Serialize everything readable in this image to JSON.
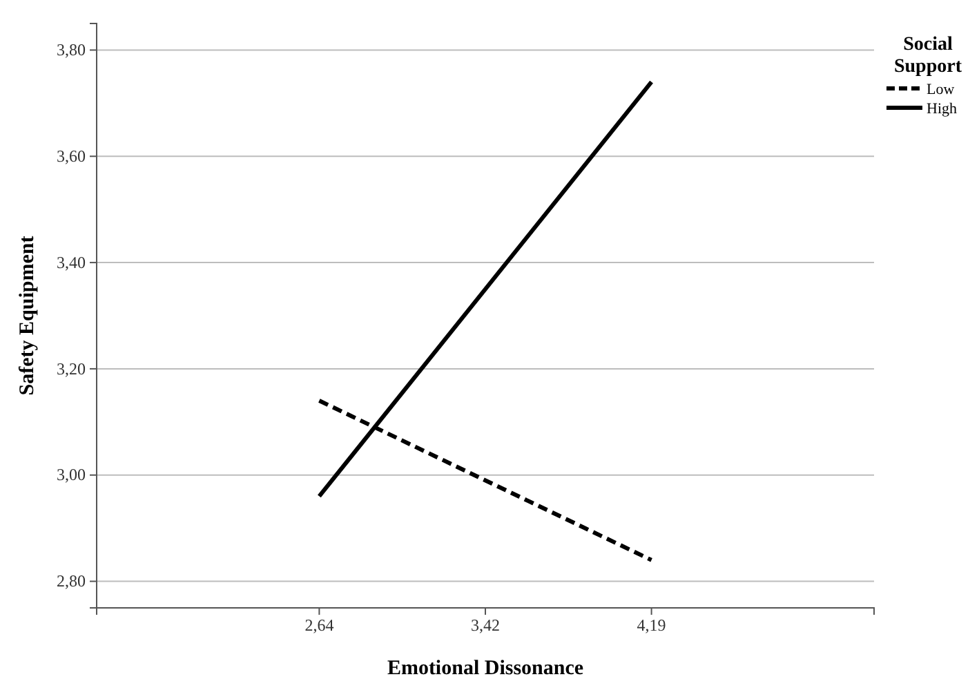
{
  "chart_data": {
    "type": "line",
    "xlabel": "Emotional Dissonance",
    "ylabel": "Safety Equipment",
    "legend_title": "Social Support",
    "categories": [
      "2,64",
      "3,42",
      "4,19"
    ],
    "series": [
      {
        "name": "Low",
        "color": "#000000",
        "line_style": "dashed",
        "values": [
          3.14,
          null,
          2.84
        ]
      },
      {
        "name": "High",
        "color": "#000000",
        "line_style": "solid",
        "values": [
          2.96,
          null,
          3.74
        ]
      }
    ],
    "ylim": [
      2.75,
      3.85
    ],
    "yticks": [
      {
        "value": 2.8,
        "label": "2,80"
      },
      {
        "value": 3.0,
        "label": "3,00"
      },
      {
        "value": 3.2,
        "label": "3,20"
      },
      {
        "value": 3.4,
        "label": "3,40"
      },
      {
        "value": 3.6,
        "label": "3,60"
      },
      {
        "value": 3.8,
        "label": "3,80"
      }
    ],
    "grid": "y",
    "legend": "top right",
    "marker": "none"
  }
}
